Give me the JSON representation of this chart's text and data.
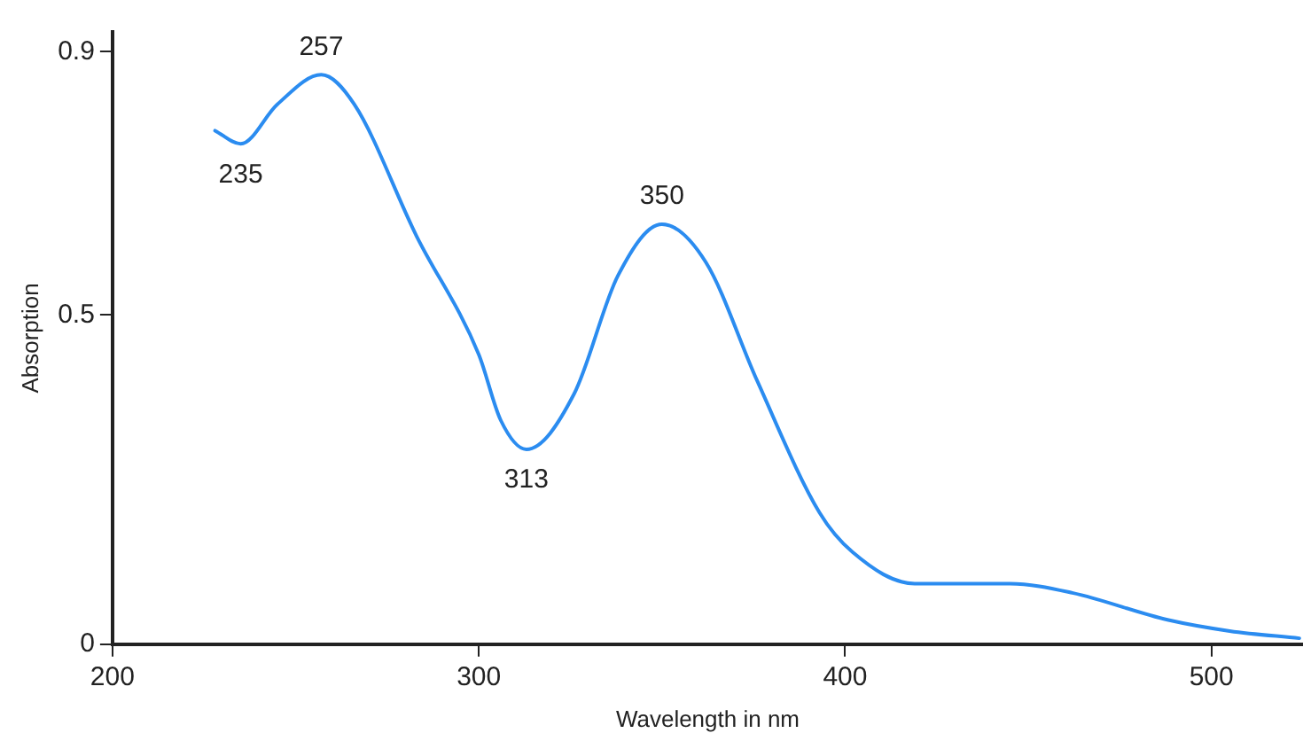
{
  "chart_data": {
    "type": "line",
    "xlabel": "Wavelength in nm",
    "ylabel": "Absorption",
    "xlim": [
      200,
      525
    ],
    "xticks": [
      200,
      300,
      400,
      500
    ],
    "ylim": [
      0,
      0.93
    ],
    "yticks": [
      0,
      0.5,
      0.9
    ],
    "grid": false,
    "legend": false,
    "marker": "none",
    "series": [
      {
        "color": "#2b8cf0",
        "x": [
          228,
          235,
          245,
          257,
          266,
          283,
          300,
          306,
          313,
          326,
          338,
          350,
          362,
          376,
          393,
          402,
          419,
          445,
          462,
          488,
          505,
          524
        ],
        "values": [
          0.78,
          0.76,
          0.82,
          0.865,
          0.82,
          0.62,
          0.44,
          0.34,
          0.296,
          0.38,
          0.56,
          0.638,
          0.58,
          0.4,
          0.2,
          0.14,
          0.092,
          0.092,
          0.078,
          0.037,
          0.02,
          0.009
        ]
      }
    ],
    "annotations": [
      {
        "text": "235",
        "x": 235,
        "y": 0.76
      },
      {
        "text": "257",
        "x": 257,
        "y": 0.865
      },
      {
        "text": "313",
        "x": 313,
        "y": 0.296
      },
      {
        "text": "350",
        "x": 350,
        "y": 0.638
      }
    ]
  }
}
